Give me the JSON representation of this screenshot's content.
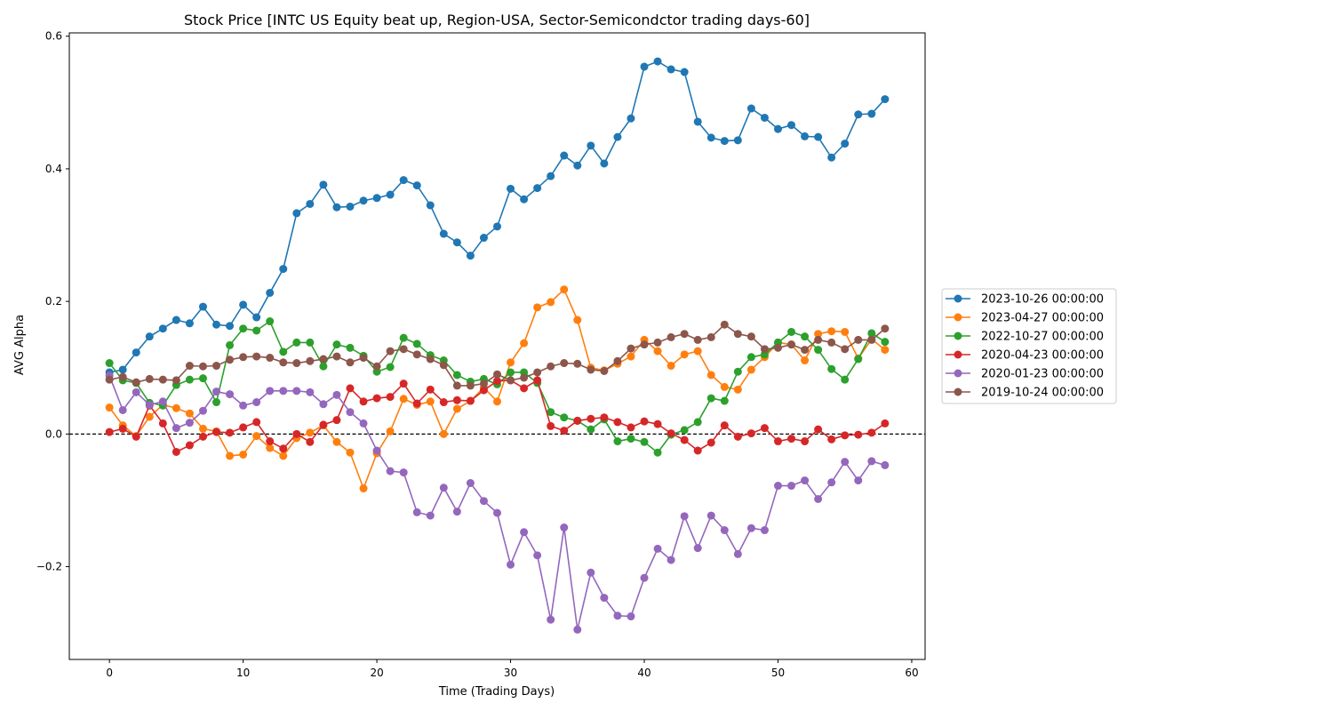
{
  "chart_data": {
    "type": "line",
    "title": "Stock Price [INTC US Equity beat up, Region-USA, Sector-Semicondctor trading days-60]",
    "xlabel": "Time (Trading Days)",
    "ylabel": "AVG Alpha",
    "xlim": [
      -3,
      61
    ],
    "ylim": [
      -0.34,
      0.605
    ],
    "xticks": [
      0,
      10,
      20,
      30,
      40,
      50,
      60
    ],
    "yticks": [
      -0.2,
      0.0,
      0.2,
      0.4,
      0.6
    ],
    "ytick_labels": [
      "−0.2",
      "0.0",
      "0.2",
      "0.4",
      "0.6"
    ],
    "reference_line": {
      "y": 0,
      "style": "dashed",
      "color": "#000000"
    },
    "legend_position": "right",
    "marker": "circle",
    "series": [
      {
        "name": "2023-10-26 00:00:00",
        "color": "#1f77b4",
        "values": [
          0.093,
          0.097,
          0.123,
          0.147,
          0.159,
          0.172,
          0.167,
          0.192,
          0.165,
          0.163,
          0.195,
          0.176,
          0.213,
          0.249,
          0.333,
          0.347,
          0.376,
          0.342,
          0.343,
          0.352,
          0.356,
          0.361,
          0.383,
          0.375,
          0.345,
          0.302,
          0.289,
          0.269,
          0.296,
          0.313,
          0.37,
          0.354,
          0.371,
          0.389,
          0.42,
          0.405,
          0.435,
          0.408,
          0.448,
          0.476,
          0.554,
          0.562,
          0.55,
          0.546,
          0.471,
          0.447,
          0.442,
          0.443,
          0.491,
          0.477,
          0.46,
          0.466,
          0.449,
          0.448,
          0.417,
          0.438,
          0.482,
          0.483,
          0.505
        ]
      },
      {
        "name": "2023-04-27 00:00:00",
        "color": "#ff7f0e",
        "values": [
          0.04,
          0.013,
          -0.003,
          0.026,
          0.044,
          0.039,
          0.031,
          0.008,
          0.004,
          -0.033,
          -0.031,
          -0.003,
          -0.021,
          -0.033,
          -0.006,
          0.002,
          0.013,
          -0.012,
          -0.028,
          -0.082,
          -0.029,
          0.004,
          0.053,
          0.044,
          0.049,
          0.0,
          0.038,
          0.05,
          0.07,
          0.049,
          0.108,
          0.137,
          0.191,
          0.199,
          0.218,
          0.172,
          0.1,
          0.096,
          0.106,
          0.117,
          0.142,
          0.125,
          0.103,
          0.12,
          0.125,
          0.089,
          0.071,
          0.067,
          0.097,
          0.116,
          0.138,
          0.135,
          0.111,
          0.151,
          0.155,
          0.154,
          0.114,
          0.143,
          0.127
        ]
      },
      {
        "name": "2022-10-27 00:00:00",
        "color": "#2ca02c",
        "values": [
          0.107,
          0.081,
          0.077,
          0.047,
          0.043,
          0.074,
          0.082,
          0.084,
          0.048,
          0.134,
          0.159,
          0.156,
          0.17,
          0.124,
          0.138,
          0.138,
          0.102,
          0.135,
          0.13,
          0.118,
          0.094,
          0.101,
          0.145,
          0.136,
          0.119,
          0.111,
          0.089,
          0.079,
          0.083,
          0.075,
          0.093,
          0.093,
          0.077,
          0.033,
          0.025,
          0.02,
          0.007,
          0.022,
          -0.011,
          -0.007,
          -0.012,
          -0.028,
          -0.001,
          0.006,
          0.018,
          0.054,
          0.05,
          0.094,
          0.116,
          0.12,
          0.138,
          0.154,
          0.147,
          0.127,
          0.098,
          0.082,
          0.113,
          0.152,
          0.139
        ]
      },
      {
        "name": "2020-04-23 00:00:00",
        "color": "#d62728",
        "values": [
          0.003,
          0.008,
          -0.004,
          0.043,
          0.016,
          -0.027,
          -0.017,
          -0.004,
          0.003,
          0.002,
          0.01,
          0.018,
          -0.011,
          -0.022,
          0.0,
          -0.012,
          0.014,
          0.021,
          0.069,
          0.049,
          0.054,
          0.056,
          0.076,
          0.046,
          0.067,
          0.048,
          0.051,
          0.05,
          0.066,
          0.08,
          0.081,
          0.069,
          0.081,
          0.012,
          0.005,
          0.02,
          0.023,
          0.025,
          0.018,
          0.01,
          0.019,
          0.015,
          0.001,
          -0.009,
          -0.025,
          -0.013,
          0.013,
          -0.004,
          0.001,
          0.009,
          -0.011,
          -0.007,
          -0.011,
          0.007,
          -0.008,
          -0.002,
          -0.001,
          0.002,
          0.016
        ]
      },
      {
        "name": "2020-01-23 00:00:00",
        "color": "#9467bd",
        "values": [
          0.088,
          0.036,
          0.063,
          0.044,
          0.049,
          0.009,
          0.017,
          0.035,
          0.064,
          0.06,
          0.043,
          0.048,
          0.065,
          0.065,
          0.065,
          0.063,
          0.045,
          0.059,
          0.033,
          0.016,
          -0.025,
          -0.056,
          -0.058,
          -0.118,
          -0.123,
          -0.081,
          -0.117,
          -0.074,
          -0.101,
          -0.119,
          -0.197,
          -0.148,
          -0.183,
          -0.28,
          -0.141,
          -0.295,
          -0.209,
          -0.247,
          -0.274,
          -0.275,
          -0.217,
          -0.173,
          -0.19,
          -0.124,
          -0.172,
          -0.123,
          -0.145,
          -0.181,
          -0.142,
          -0.145,
          -0.078,
          -0.078,
          -0.07,
          -0.098,
          -0.073,
          -0.042,
          -0.07,
          -0.041,
          -0.047
        ]
      },
      {
        "name": "2019-10-24 00:00:00",
        "color": "#8c564b",
        "values": [
          0.082,
          0.086,
          0.078,
          0.083,
          0.082,
          0.081,
          0.103,
          0.102,
          0.103,
          0.112,
          0.116,
          0.117,
          0.115,
          0.108,
          0.107,
          0.11,
          0.113,
          0.117,
          0.108,
          0.115,
          0.102,
          0.125,
          0.128,
          0.12,
          0.113,
          0.104,
          0.073,
          0.073,
          0.076,
          0.09,
          0.081,
          0.085,
          0.093,
          0.102,
          0.107,
          0.106,
          0.097,
          0.095,
          0.11,
          0.129,
          0.135,
          0.138,
          0.146,
          0.151,
          0.142,
          0.146,
          0.165,
          0.151,
          0.147,
          0.128,
          0.13,
          0.135,
          0.127,
          0.142,
          0.138,
          0.128,
          0.142,
          0.142,
          0.159
        ]
      }
    ]
  }
}
